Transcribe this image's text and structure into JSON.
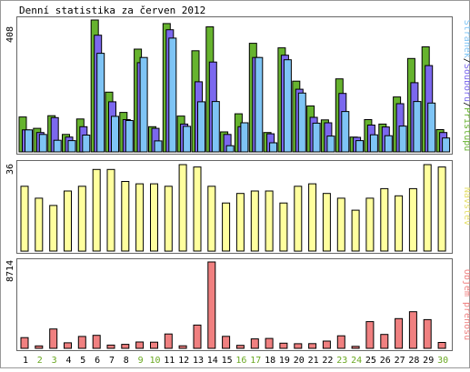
{
  "title": "Denní statistika za červen 2012",
  "colors": {
    "hits": "#66b32e",
    "files": "#7b68ee",
    "pages": "#7ec4f5",
    "visits": "#ffff9e",
    "volume": "#f08080",
    "frame": "#666666",
    "weekend": "#6aa821",
    "text": "#000000"
  },
  "chart_data": [
    {
      "type": "bar",
      "panel": "top",
      "ylabel_max": "408",
      "legend": [
        {
          "text": "Stránek",
          "color_key": "pages"
        },
        {
          "text": "/",
          "color_key": "text"
        },
        {
          "text": "Souborů",
          "color_key": "files"
        },
        {
          "text": "/",
          "color_key": "text"
        },
        {
          "text": "Přístupů",
          "color_key": "hits"
        }
      ],
      "ylim": [
        0,
        408
      ],
      "categories": [
        "1",
        "2",
        "3",
        "4",
        "5",
        "6",
        "7",
        "8",
        "9",
        "10",
        "11",
        "12",
        "13",
        "14",
        "15",
        "16",
        "17",
        "18",
        "19",
        "20",
        "21",
        "22",
        "23",
        "24",
        "25",
        "26",
        "27",
        "28",
        "29",
        "30"
      ],
      "series": [
        {
          "name": "Přístupů",
          "color_key": "hits",
          "values": [
            108,
            73,
            112,
            54,
            102,
            408,
            185,
            122,
            318,
            78,
            397,
            111,
            313,
            387,
            62,
            118,
            336,
            60,
            322,
            219,
            142,
            99,
            226,
            46,
            100,
            86,
            170,
            289,
            325,
            69
          ]
        },
        {
          "name": "Souborů",
          "color_key": "files",
          "values": [
            68,
            60,
            106,
            46,
            78,
            361,
            155,
            100,
            276,
            73,
            378,
            86,
            217,
            278,
            54,
            78,
            292,
            56,
            299,
            194,
            107,
            90,
            181,
            45,
            83,
            77,
            149,
            214,
            267,
            60
          ]
        },
        {
          "name": "Stránek",
          "color_key": "pages",
          "values": [
            68,
            54,
            36,
            35,
            52,
            305,
            110,
            97,
            292,
            34,
            352,
            79,
            155,
            156,
            19,
            90,
            292,
            28,
            285,
            182,
            89,
            49,
            125,
            35,
            53,
            50,
            80,
            156,
            151,
            43
          ]
        }
      ]
    },
    {
      "type": "bar",
      "panel": "middle",
      "ylabel_max": "36",
      "legend": [
        {
          "text": "Návštěv",
          "color_key": "visits"
        }
      ],
      "ylim": [
        0,
        36
      ],
      "categories": [
        "1",
        "2",
        "3",
        "4",
        "5",
        "6",
        "7",
        "8",
        "9",
        "10",
        "11",
        "12",
        "13",
        "14",
        "15",
        "16",
        "17",
        "18",
        "19",
        "20",
        "21",
        "22",
        "23",
        "24",
        "25",
        "26",
        "27",
        "28",
        "29",
        "30"
      ],
      "series": [
        {
          "name": "Návštěv",
          "color_key": "visits",
          "values": [
            27,
            22,
            19,
            25,
            27,
            34,
            34,
            29,
            28,
            28,
            27,
            36,
            35,
            27,
            20,
            24,
            25,
            25,
            20,
            27,
            28,
            24,
            22,
            17,
            22,
            26,
            23,
            26,
            36,
            35
          ]
        }
      ]
    },
    {
      "type": "bar",
      "panel": "bottom",
      "ylabel_max": "8714",
      "legend": [
        {
          "text": "Objem přenosu",
          "color_key": "volume"
        }
      ],
      "ylim": [
        0,
        8714
      ],
      "categories": [
        "1",
        "2",
        "3",
        "4",
        "5",
        "6",
        "7",
        "8",
        "9",
        "10",
        "11",
        "12",
        "13",
        "14",
        "15",
        "16",
        "17",
        "18",
        "19",
        "20",
        "21",
        "22",
        "23",
        "24",
        "25",
        "26",
        "27",
        "28",
        "29",
        "30"
      ],
      "series": [
        {
          "name": "Objem přenosu",
          "color_key": "volume",
          "values": [
            1080,
            250,
            1950,
            560,
            1200,
            1310,
            330,
            400,
            640,
            620,
            1450,
            260,
            2350,
            8714,
            1210,
            300,
            950,
            1000,
            520,
            470,
            480,
            730,
            1270,
            200,
            2700,
            1400,
            3000,
            3700,
            2900,
            600
          ]
        }
      ]
    }
  ],
  "days": [
    {
      "label": "1",
      "weekend": false
    },
    {
      "label": "2",
      "weekend": true
    },
    {
      "label": "3",
      "weekend": true
    },
    {
      "label": "4",
      "weekend": false
    },
    {
      "label": "5",
      "weekend": false
    },
    {
      "label": "6",
      "weekend": false
    },
    {
      "label": "7",
      "weekend": false
    },
    {
      "label": "8",
      "weekend": false
    },
    {
      "label": "9",
      "weekend": true
    },
    {
      "label": "10",
      "weekend": true
    },
    {
      "label": "11",
      "weekend": false
    },
    {
      "label": "12",
      "weekend": false
    },
    {
      "label": "13",
      "weekend": false
    },
    {
      "label": "14",
      "weekend": false
    },
    {
      "label": "15",
      "weekend": false
    },
    {
      "label": "16",
      "weekend": true
    },
    {
      "label": "17",
      "weekend": true
    },
    {
      "label": "18",
      "weekend": false
    },
    {
      "label": "19",
      "weekend": false
    },
    {
      "label": "20",
      "weekend": false
    },
    {
      "label": "21",
      "weekend": false
    },
    {
      "label": "22",
      "weekend": false
    },
    {
      "label": "23",
      "weekend": true
    },
    {
      "label": "24",
      "weekend": true
    },
    {
      "label": "25",
      "weekend": false
    },
    {
      "label": "26",
      "weekend": false
    },
    {
      "label": "27",
      "weekend": false
    },
    {
      "label": "28",
      "weekend": false
    },
    {
      "label": "29",
      "weekend": false
    },
    {
      "label": "30",
      "weekend": true
    }
  ]
}
